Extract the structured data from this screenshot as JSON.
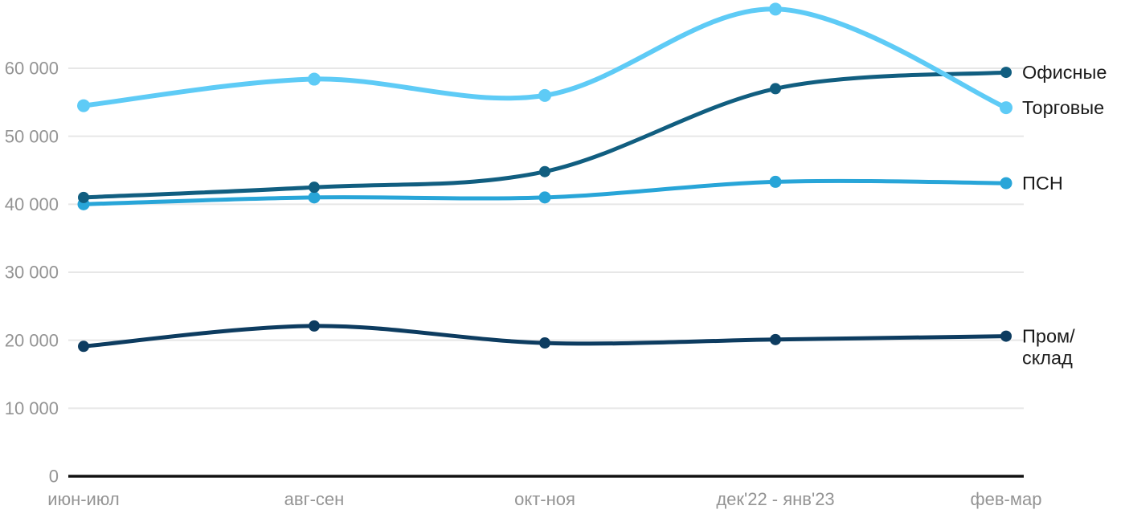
{
  "chart_data": {
    "type": "line",
    "title": "",
    "xlabel": "",
    "ylabel": "",
    "categories": [
      "июн-июл",
      "авг-сен",
      "окт-ноя",
      "дек'22 - янв'23",
      "фев-мар"
    ],
    "series": [
      {
        "id": "psn",
        "name": "ПСН",
        "color": "#28a5d8",
        "values": [
          40000,
          41000,
          41000,
          43300,
          43100
        ]
      },
      {
        "id": "prom-sklad",
        "name": "Пром/склад",
        "label_lines": [
          "Пром/",
          "склад"
        ],
        "color": "#0d3c60",
        "values": [
          19100,
          22100,
          19600,
          20100,
          20600
        ]
      },
      {
        "id": "offices",
        "name": "Офисные",
        "color": "#115e80",
        "values": [
          41000,
          42500,
          44800,
          57000,
          59400
        ]
      },
      {
        "id": "retail",
        "name": "Торговые",
        "color": "#5ecbf6",
        "values": [
          54500,
          58400,
          56000,
          68700,
          54200
        ]
      }
    ],
    "ylim": [
      0,
      70000
    ],
    "y_ticks": [
      0,
      10000,
      20000,
      30000,
      40000,
      50000,
      60000
    ],
    "y_tick_labels": [
      "0",
      "10 000",
      "20 000",
      "30 000",
      "40 000",
      "50 000",
      "60 000"
    ],
    "grid": "horizontal",
    "legend_position": "right-of-line-end",
    "colors": {
      "background": "#ffffff",
      "gridline": "#e7e7e7",
      "axis_line": "#111111",
      "tick_label": "#949494",
      "series_label": "#1b1b1b"
    }
  }
}
